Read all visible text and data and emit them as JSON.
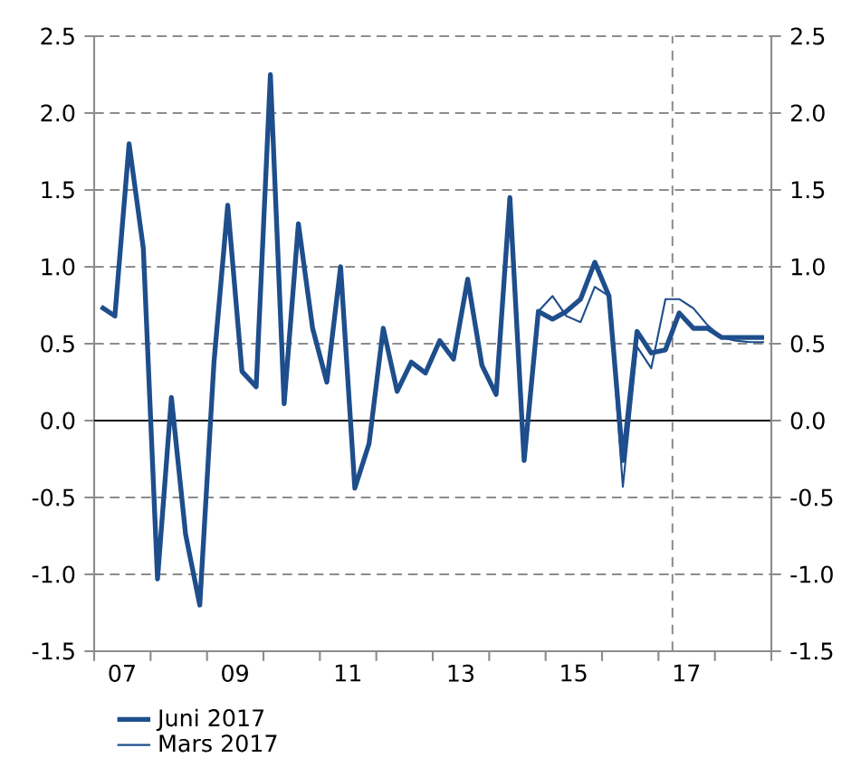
{
  "chart_data": {
    "type": "line",
    "x": [
      "2007-02-15",
      "2007-05-15",
      "2007-08-15",
      "2007-11-15",
      "2008-02-15",
      "2008-05-15",
      "2008-08-15",
      "2008-11-15",
      "2009-02-15",
      "2009-05-15",
      "2009-08-15",
      "2009-11-15",
      "2010-02-15",
      "2010-05-15",
      "2010-08-15",
      "2010-11-15",
      "2011-02-15",
      "2011-05-15",
      "2011-08-15",
      "2011-11-15",
      "2012-02-15",
      "2012-05-15",
      "2012-08-15",
      "2012-11-15",
      "2013-02-15",
      "2013-05-15",
      "2013-08-15",
      "2013-11-15",
      "2014-02-15",
      "2014-05-15",
      "2014-08-15",
      "2014-11-15",
      "2015-02-15",
      "2015-05-15",
      "2015-08-15",
      "2015-11-15",
      "2016-02-15",
      "2016-05-15",
      "2016-08-15",
      "2016-11-15",
      "2017-02-15",
      "2017-05-15",
      "2017-08-15",
      "2017-11-15",
      "2018-02-15",
      "2018-05-15",
      "2018-08-15",
      "2018-11-15"
    ],
    "series": [
      {
        "name": "Juni 2017",
        "color": "#1f4e8c",
        "values": [
          0.74,
          0.68,
          1.8,
          1.12,
          -1.03,
          0.15,
          -0.74,
          -1.2,
          0.38,
          1.4,
          0.32,
          0.22,
          2.25,
          0.11,
          1.28,
          0.6,
          0.25,
          1.0,
          -0.44,
          -0.15,
          0.6,
          0.19,
          0.38,
          0.31,
          0.52,
          0.4,
          0.92,
          0.36,
          0.17,
          1.45,
          -0.26,
          0.71,
          0.66,
          0.71,
          0.79,
          1.03,
          0.81,
          -0.26,
          0.58,
          0.44,
          0.46,
          0.7,
          0.6,
          0.6,
          0.54,
          0.54,
          0.54,
          0.54
        ]
      },
      {
        "name": "Mars 2017",
        "color": "#1f4e8c",
        "values": [
          0.74,
          0.68,
          1.8,
          1.12,
          -1.03,
          0.15,
          -0.74,
          -1.2,
          0.38,
          1.4,
          0.32,
          0.22,
          2.25,
          0.11,
          1.28,
          0.6,
          0.25,
          1.0,
          -0.44,
          -0.15,
          0.6,
          0.19,
          0.38,
          0.31,
          0.52,
          0.4,
          0.92,
          0.36,
          0.17,
          1.45,
          -0.26,
          0.71,
          0.81,
          0.68,
          0.64,
          0.87,
          0.81,
          -0.43,
          0.48,
          0.34,
          0.79,
          0.79,
          0.73,
          0.62,
          0.54,
          0.52,
          0.51,
          0.51
        ]
      }
    ],
    "xlim": [
      "2007-01-01",
      "2019-01-01"
    ],
    "xticks": [
      {
        "value": "2007-07-01",
        "label": "07"
      },
      {
        "value": "2009-07-01",
        "label": "09"
      },
      {
        "value": "2011-07-01",
        "label": "11"
      },
      {
        "value": "2013-07-01",
        "label": "13"
      },
      {
        "value": "2015-07-01",
        "label": "15"
      },
      {
        "value": "2017-07-01",
        "label": "17"
      },
      {
        "value": "2007-01-01",
        "label": null
      },
      {
        "value": "2008-01-01",
        "label": null
      },
      {
        "value": "2009-01-01",
        "label": null
      },
      {
        "value": "2010-01-01",
        "label": null
      },
      {
        "value": "2011-01-01",
        "label": null
      },
      {
        "value": "2012-01-01",
        "label": null
      },
      {
        "value": "2013-01-01",
        "label": null
      },
      {
        "value": "2014-01-01",
        "label": null
      },
      {
        "value": "2015-01-01",
        "label": null
      },
      {
        "value": "2016-01-01",
        "label": null
      },
      {
        "value": "2017-01-01",
        "label": null
      },
      {
        "value": "2018-01-01",
        "label": null
      },
      {
        "value": "2019-01-01",
        "label": null
      }
    ],
    "ylim": [
      -1.5,
      2.5
    ],
    "yticks": [
      {
        "value": -1.5,
        "label": "-1.5"
      },
      {
        "value": -1.0,
        "label": "-1.0"
      },
      {
        "value": -0.5,
        "label": "-0.5"
      },
      {
        "value": 0.0,
        "label": "0.0"
      },
      {
        "value": 0.5,
        "label": "0.5"
      },
      {
        "value": 1.0,
        "label": "1.0"
      },
      {
        "value": 1.5,
        "label": "1.5"
      },
      {
        "value": 2.0,
        "label": "2.0"
      },
      {
        "value": 2.5,
        "label": "2.5"
      }
    ],
    "y2lim": [
      -1.5,
      2.5
    ],
    "y2ticks": [
      {
        "value": -1.5,
        "label": "-1.5"
      },
      {
        "value": -1.0,
        "label": "-1.0"
      },
      {
        "value": -0.5,
        "label": "-0.5"
      },
      {
        "value": 0.0,
        "label": "0.0"
      },
      {
        "value": 0.5,
        "label": "0.5"
      },
      {
        "value": 1.0,
        "label": "1.0"
      },
      {
        "value": 1.5,
        "label": "1.5"
      },
      {
        "value": 2.0,
        "label": "2.0"
      },
      {
        "value": 2.5,
        "label": "2.5"
      }
    ],
    "ref_lines": [
      {
        "axis": "y",
        "value": 0,
        "color": "#000000",
        "line_style": "solid"
      },
      {
        "axis": "x",
        "value": "2017-04-01",
        "color": "#888888",
        "line_style": "dashed"
      }
    ],
    "grid": "y",
    "legend": "bottom",
    "marker": "none",
    "line_style": "solid"
  }
}
